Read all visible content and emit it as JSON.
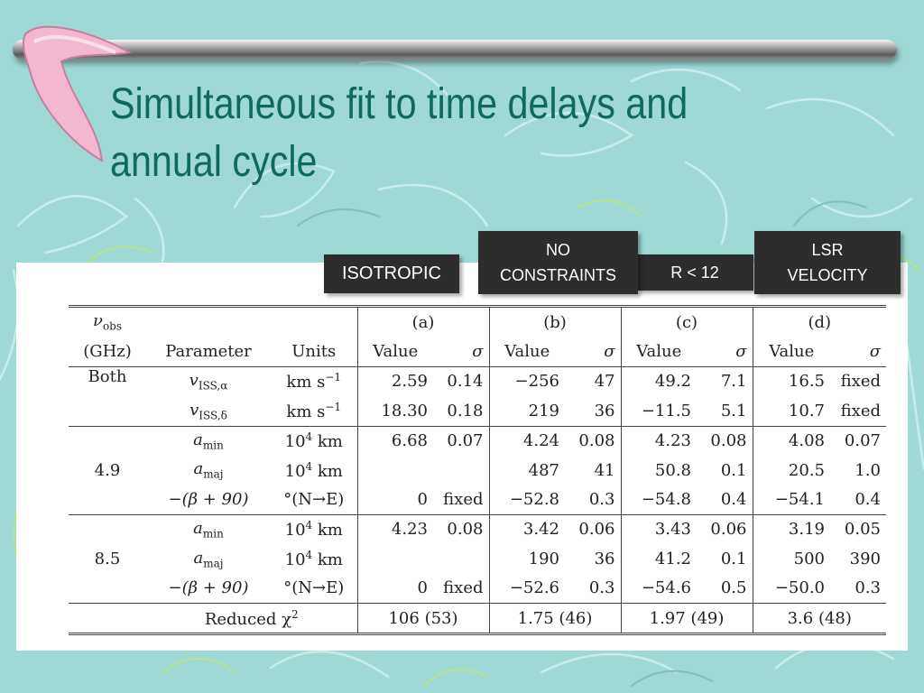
{
  "slide": {
    "title": "Simultaneous fit to time delays and annual cycle",
    "title_line1": "Simultaneous fit to time delays and",
    "title_line2": "annual cycle",
    "colors": {
      "background": "#9ed9d6",
      "title": "#0f6a5d",
      "label_bg": "#2d2d2d",
      "label_text": "#ffffff"
    }
  },
  "labels": {
    "a": "ISOTROPIC",
    "b_line1": "NO",
    "b_line2": "CONSTRAINTS",
    "c": "R < 12",
    "d_line1": "LSR",
    "d_line2": "VELOCITY"
  },
  "table": {
    "header": {
      "nu_obs": "ν",
      "nu_obs_sub": "obs",
      "ghz": "(GHz)",
      "parameter": "Parameter",
      "units": "Units",
      "cases": [
        "(a)",
        "(b)",
        "(c)",
        "(d)"
      ],
      "value": "Value",
      "sigma": "σ"
    },
    "groups": [
      {
        "freq": "Both",
        "rows": [
          {
            "param": "v",
            "param_sub": "ISS,α",
            "unit": "km s",
            "unit_sup": "−1",
            "vals": [
              "2.59",
              "0.14",
              "−256",
              "47",
              "49.2",
              "7.1",
              "16.5",
              "fixed"
            ]
          },
          {
            "param": "v",
            "param_sub": "ISS,δ",
            "unit": "km s",
            "unit_sup": "−1",
            "vals": [
              "18.30",
              "0.18",
              "219",
              "36",
              "−11.5",
              "5.1",
              "10.7",
              "fixed"
            ]
          }
        ]
      },
      {
        "freq": "4.9",
        "rows": [
          {
            "param": "a",
            "param_sub": "min",
            "unit": "10",
            "unit_sup": "4",
            "unit_tail": " km",
            "vals": [
              "6.68",
              "0.07",
              "4.24",
              "0.08",
              "4.23",
              "0.08",
              "4.08",
              "0.07"
            ]
          },
          {
            "param": "a",
            "param_sub": "maj",
            "unit": "10",
            "unit_sup": "4",
            "unit_tail": " km",
            "vals": [
              "",
              "",
              "487",
              "41",
              "50.8",
              "0.1",
              "20.5",
              "1.0"
            ]
          },
          {
            "param": "−(β + 90)",
            "param_sub": "",
            "unit": "°(N→E)",
            "unit_sup": "",
            "unit_tail": "",
            "vals": [
              "0",
              "fixed",
              "−52.8",
              "0.3",
              "−54.8",
              "0.4",
              "−54.1",
              "0.4"
            ]
          }
        ]
      },
      {
        "freq": "8.5",
        "rows": [
          {
            "param": "a",
            "param_sub": "min",
            "unit": "10",
            "unit_sup": "4",
            "unit_tail": " km",
            "vals": [
              "4.23",
              "0.08",
              "3.42",
              "0.06",
              "3.43",
              "0.06",
              "3.19",
              "0.05"
            ]
          },
          {
            "param": "a",
            "param_sub": "maj",
            "unit": "10",
            "unit_sup": "4",
            "unit_tail": " km",
            "vals": [
              "",
              "",
              "190",
              "36",
              "41.2",
              "0.1",
              "500",
              "390"
            ]
          },
          {
            "param": "−(β + 90)",
            "param_sub": "",
            "unit": "°(N→E)",
            "unit_sup": "",
            "unit_tail": "",
            "vals": [
              "0",
              "fixed",
              "−52.6",
              "0.3",
              "−54.6",
              "0.5",
              "−50.0",
              "0.3"
            ]
          }
        ]
      }
    ],
    "chi2": {
      "label": "Reduced χ",
      "label_sup": "2",
      "vals": [
        "106 (53)",
        "1.75 (46)",
        "1.97 (49)",
        "3.6 (48)"
      ]
    }
  }
}
